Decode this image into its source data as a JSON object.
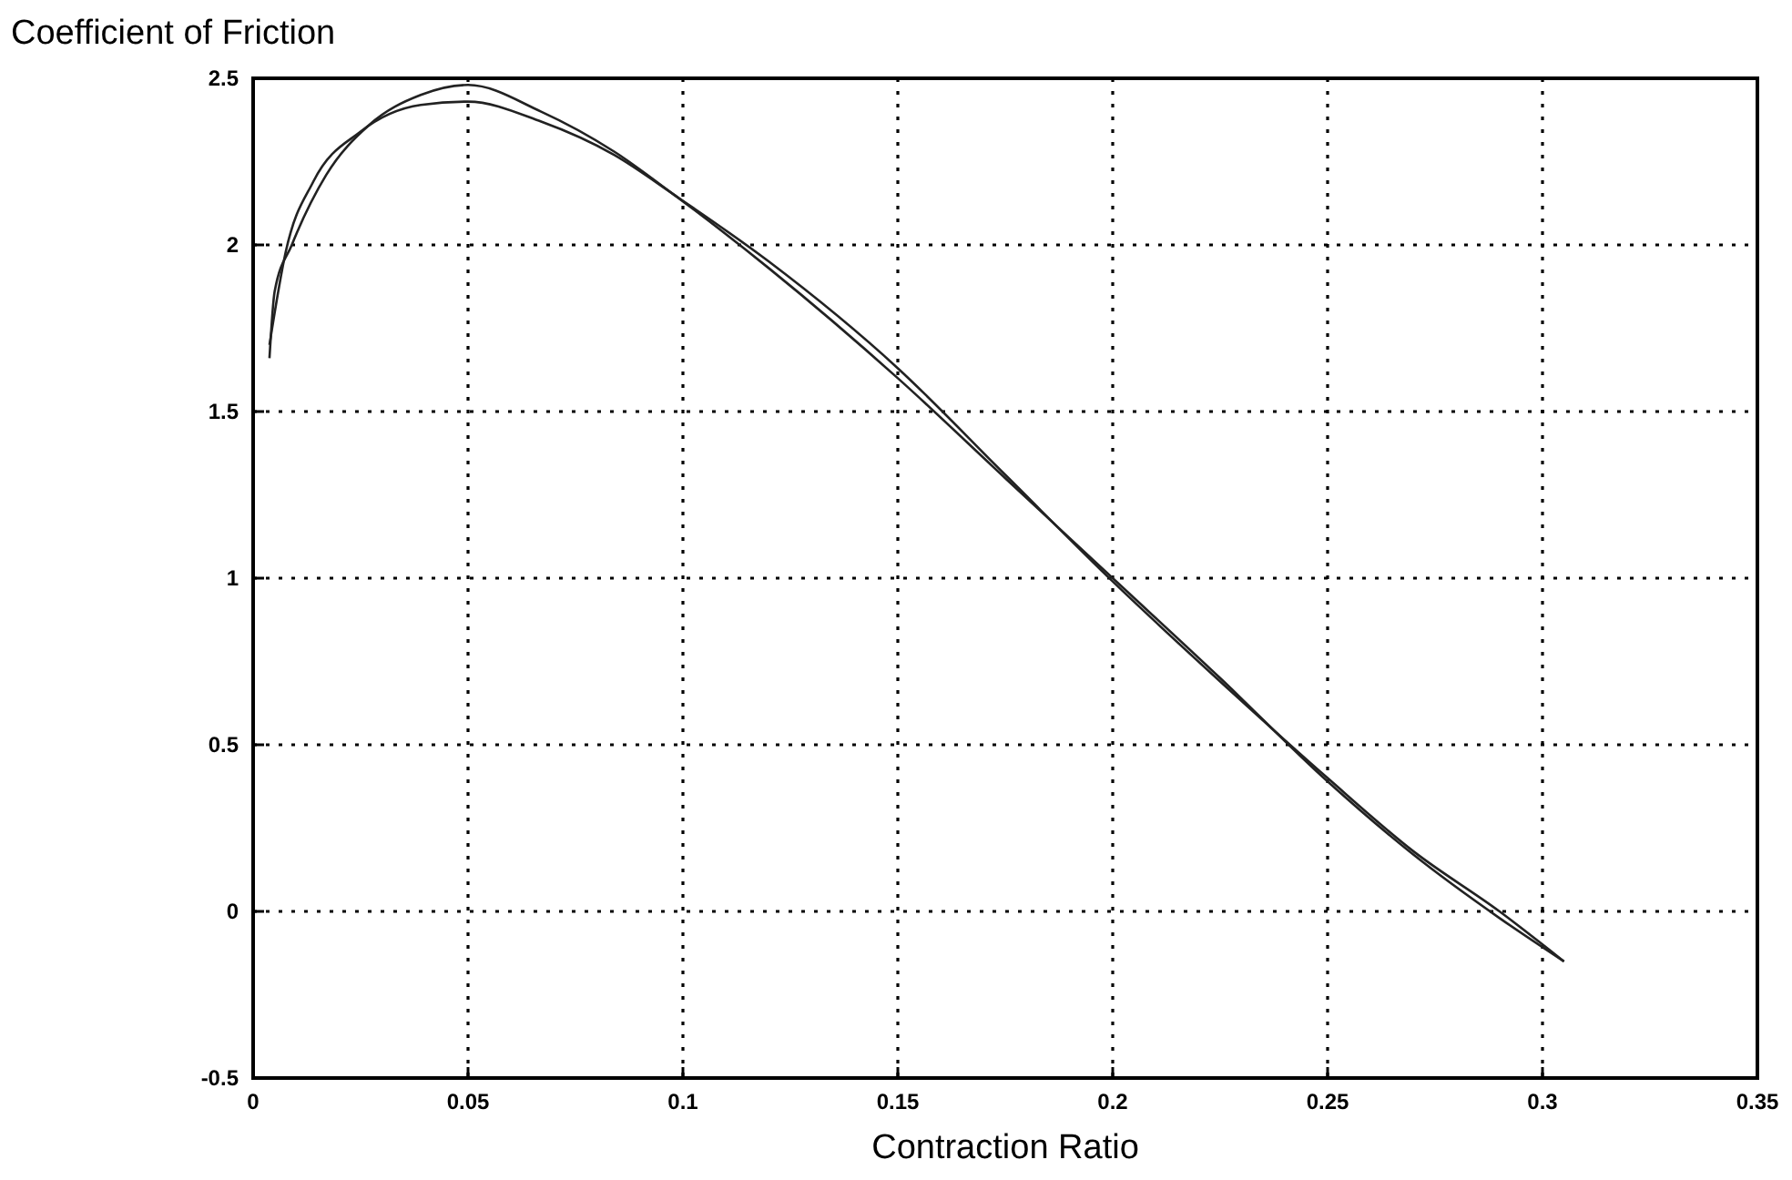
{
  "chart_data": {
    "type": "line",
    "xlabel": "Contraction Ratio",
    "ylabel": "Coefficient of Friction",
    "xlim": [
      0,
      0.35
    ],
    "xticks": [
      0,
      0.05,
      0.1,
      0.15,
      0.2,
      0.25,
      0.3,
      0.35
    ],
    "ylim": [
      -0.5,
      2.5
    ],
    "yticks": [
      -0.5,
      0,
      0.5,
      1,
      1.5,
      2,
      2.5
    ],
    "grid": true,
    "line_style": "solid",
    "series": [
      {
        "color": "#222222",
        "x": [
          0.0038,
          0.005,
          0.009,
          0.017,
          0.027,
          0.039,
          0.05,
          0.067,
          0.084,
          0.098,
          0.12,
          0.15,
          0.175,
          0.2,
          0.225,
          0.25,
          0.27,
          0.29,
          0.305
        ],
        "values": [
          1.66,
          1.86,
          2.0,
          2.21,
          2.36,
          2.45,
          2.48,
          2.4,
          2.28,
          2.15,
          1.93,
          1.6,
          1.3,
          1.0,
          0.7,
          0.39,
          0.17,
          -0.02,
          -0.15
        ]
      },
      {
        "color": "#222222",
        "x": [
          0.0038,
          0.0076,
          0.014,
          0.025,
          0.039,
          0.05,
          0.067,
          0.084,
          0.098,
          0.12,
          0.15,
          0.175,
          0.2,
          0.225,
          0.25,
          0.27,
          0.29,
          0.305
        ],
        "values": [
          1.7,
          1.98,
          2.19,
          2.34,
          2.42,
          2.43,
          2.37,
          2.27,
          2.15,
          1.95,
          1.63,
          1.31,
          0.99,
          0.69,
          0.4,
          0.18,
          0.0,
          -0.15
        ]
      }
    ]
  }
}
